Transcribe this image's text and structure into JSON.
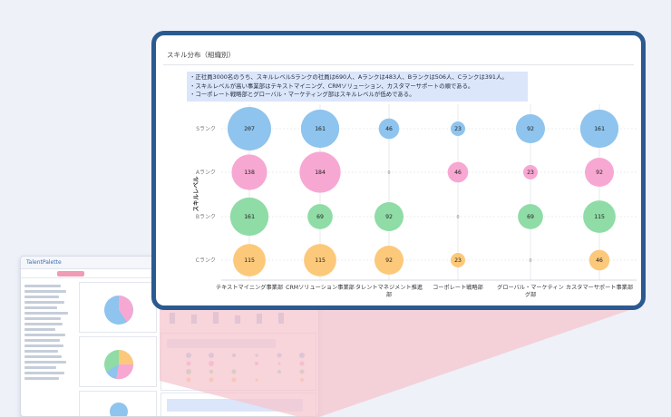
{
  "card": {
    "title": "スキル分布（組織別）",
    "notes": [
      "・正社員3000名のうち、スキルレベルSランクの社員は690人、Aランクは483人、Bランクは506人、Cランクは391人。",
      "・スキルレベルが高い事業部はテキストマイニング、CRMソリューション、カスタマーサポートの順である。",
      "・コーポレート戦略部とグローバル・マーケティング部はスキルレベルが低めである。"
    ]
  },
  "bg": {
    "logo": "TalentPalette"
  },
  "colors": {
    "frame": "#2b5a90",
    "S": "#8ec4ee",
    "A": "#f7a8d2",
    "B": "#8fdca6",
    "C": "#fcc97a"
  },
  "chart_data": {
    "type": "scatter",
    "subtype": "bubble",
    "ylabel": "スキルレベル",
    "xlabel": "",
    "categories": [
      "テキストマイニング事業部",
      "CRMソリューション事業部",
      "タレントマネジメント推進部",
      "コーポレート戦略部",
      "グローバル・マーケティング部",
      "カスタマーサポート事業部"
    ],
    "category_lines": [
      [
        "テキストマイニング事業部"
      ],
      [
        "CRMソリューション事業部"
      ],
      [
        "タレントマネジメント推進",
        "部"
      ],
      [
        "コーポレート戦略部"
      ],
      [
        "グローバル・マーケティン",
        "グ部"
      ],
      [
        "カスタマーサポート事業部"
      ]
    ],
    "ranks": [
      "Sランク",
      "Aランク",
      "Bランク",
      "Cランク"
    ],
    "series": [
      {
        "name": "Sランク",
        "key": "S",
        "values": [
          207,
          161,
          46,
          23,
          92,
          161
        ]
      },
      {
        "name": "Aランク",
        "key": "A",
        "values": [
          138,
          184,
          0,
          46,
          23,
          92
        ]
      },
      {
        "name": "Bランク",
        "key": "B",
        "values": [
          161,
          69,
          92,
          0,
          69,
          115
        ]
      },
      {
        "name": "Cランク",
        "key": "C",
        "values": [
          115,
          115,
          92,
          23,
          0,
          46
        ]
      }
    ],
    "legend": "none",
    "grid": true
  }
}
